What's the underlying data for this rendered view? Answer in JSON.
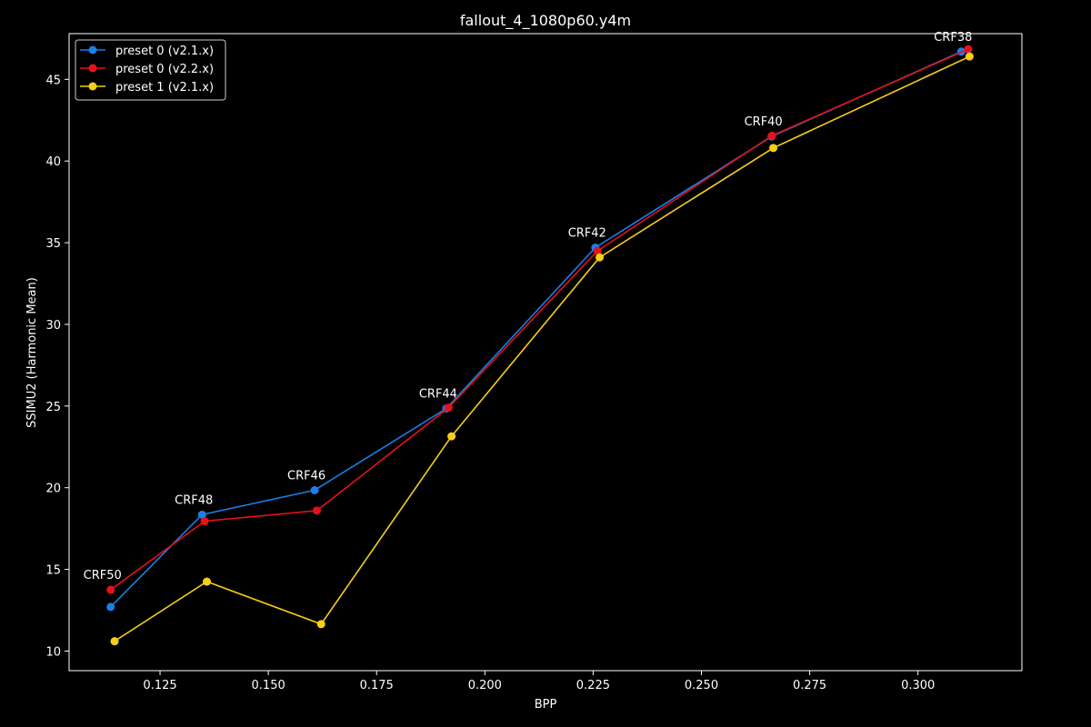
{
  "chart_data": {
    "type": "line",
    "title": "fallout_4_1080p60.y4m",
    "xlabel": "BPP",
    "ylabel": "SSIMU2 (Harmonic Mean)",
    "xlim": [
      0.104,
      0.324
    ],
    "ylim": [
      8.8,
      47.8
    ],
    "xticks": [
      0.125,
      0.15,
      0.175,
      0.2,
      0.225,
      0.25,
      0.275,
      0.3
    ],
    "xtick_labels": [
      "0.125",
      "0.150",
      "0.175",
      "0.200",
      "0.225",
      "0.250",
      "0.275",
      "0.300"
    ],
    "yticks": [
      10,
      15,
      20,
      25,
      30,
      35,
      40,
      45
    ],
    "ytick_labels": [
      "10",
      "15",
      "20",
      "25",
      "30",
      "35",
      "40",
      "45"
    ],
    "grid": false,
    "legend_position": "top-left",
    "series": [
      {
        "name": "preset 0 (v2.1.x)",
        "color": "#1a7fe8",
        "x": [
          0.1136,
          0.1347,
          0.1607,
          0.1911,
          0.2255,
          0.2662,
          0.31
        ],
        "y": [
          12.7,
          18.35,
          19.85,
          24.85,
          34.7,
          41.5,
          46.7
        ]
      },
      {
        "name": "preset 0 (v2.2.x)",
        "color": "#e8101c",
        "x": [
          0.1136,
          0.1353,
          0.1612,
          0.1916,
          0.226,
          0.2663,
          0.3116
        ],
        "y": [
          13.75,
          17.95,
          18.6,
          24.9,
          34.5,
          41.55,
          46.85
        ]
      },
      {
        "name": "preset 1 (v2.1.x)",
        "color": "#f5cf18",
        "x": [
          0.1145,
          0.1358,
          0.1622,
          0.1923,
          0.2265,
          0.2666,
          0.3119
        ],
        "y": [
          10.6,
          14.25,
          11.65,
          23.15,
          34.1,
          40.8,
          46.4
        ]
      }
    ],
    "annotations": [
      {
        "text": "CRF50",
        "x": 0.1136,
        "y": 13.75
      },
      {
        "text": "CRF48",
        "x": 0.1347,
        "y": 18.35
      },
      {
        "text": "CRF46",
        "x": 0.1607,
        "y": 19.85
      },
      {
        "text": "CRF44",
        "x": 0.1911,
        "y": 24.85
      },
      {
        "text": "CRF42",
        "x": 0.2255,
        "y": 34.7
      },
      {
        "text": "CRF40",
        "x": 0.2662,
        "y": 41.5
      },
      {
        "text": "CRF38",
        "x": 0.31,
        "y": 46.7
      }
    ]
  }
}
